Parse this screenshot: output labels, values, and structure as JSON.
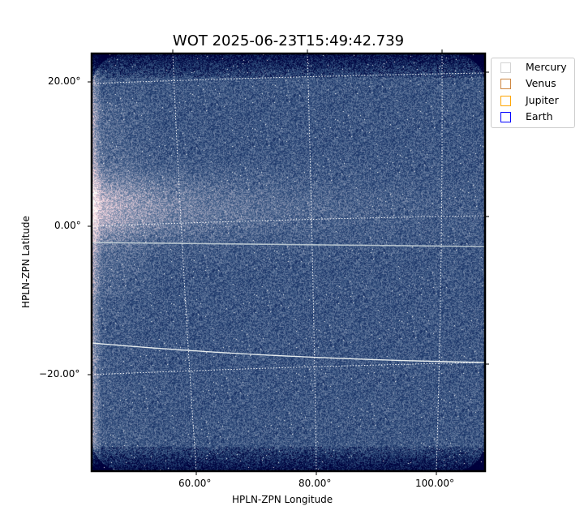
{
  "chart_data": {
    "type": "heatmap",
    "title": "WOT 2025-06-23T15:49:42.739",
    "xlabel": "HPLN-ZPN Longitude",
    "ylabel": "HPLN-ZPN Latitude",
    "x_ticks": [
      "60.00°",
      "80.00°",
      "100.00°"
    ],
    "y_ticks": [
      "20.00°",
      "0.00°",
      "−20.00°"
    ],
    "grid": true,
    "colormap": "bone",
    "legend_placement": "outside-top-right",
    "legend": [
      {
        "name": "Mercury",
        "color": "#d3d3d3"
      },
      {
        "name": "Venus",
        "color": "#cd853f"
      },
      {
        "name": "Jupiter",
        "color": "#ffa500"
      },
      {
        "name": "Earth",
        "color": "#0000ff"
      }
    ]
  }
}
